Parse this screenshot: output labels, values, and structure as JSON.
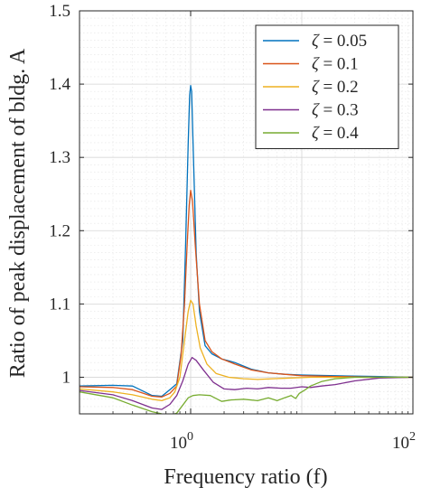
{
  "chart_data": {
    "type": "line",
    "title": "",
    "xlabel": "Frequency ratio (f)",
    "ylabel": "Ratio of peak displacement of bldg. A",
    "xscale": "log",
    "xlim": [
      0.1,
      100
    ],
    "ylim": [
      0.95,
      1.5
    ],
    "xticks": [
      {
        "value": 1,
        "base": "10",
        "exp": "0"
      },
      {
        "value": 100,
        "base": "10",
        "exp": "2"
      }
    ],
    "yticks": [
      {
        "value": 1.0,
        "label": "1"
      },
      {
        "value": 1.1,
        "label": "1.1"
      },
      {
        "value": 1.2,
        "label": "1.2"
      },
      {
        "value": 1.3,
        "label": "1.3"
      },
      {
        "value": 1.4,
        "label": "1.4"
      },
      {
        "value": 1.5,
        "label": "1.5"
      }
    ],
    "grid": true,
    "legend_position": "top-right",
    "series": [
      {
        "name": "ζ = 0.05",
        "symbol": "ζ",
        "label_value": " = 0.05",
        "color": "#0072BD",
        "x": [
          0.1,
          0.2,
          0.3,
          0.45,
          0.55,
          0.65,
          0.75,
          0.85,
          0.9,
          0.95,
          0.98,
          1.0,
          1.02,
          1.06,
          1.12,
          1.2,
          1.35,
          1.55,
          1.9,
          2.5,
          3.5,
          5,
          7,
          10,
          20,
          50,
          100
        ],
        "y": [
          0.988,
          0.989,
          0.988,
          0.975,
          0.974,
          0.983,
          0.991,
          1.05,
          1.18,
          1.32,
          1.385,
          1.398,
          1.39,
          1.3,
          1.17,
          1.09,
          1.043,
          1.032,
          1.025,
          1.02,
          1.011,
          1.006,
          1.004,
          1.003,
          1.002,
          1.001,
          1.0
        ]
      },
      {
        "name": "ζ = 0.1",
        "symbol": "ζ",
        "label_value": " = 0.1",
        "color": "#D95319",
        "x": [
          0.1,
          0.2,
          0.3,
          0.45,
          0.55,
          0.65,
          0.75,
          0.82,
          0.88,
          0.93,
          0.97,
          1.0,
          1.04,
          1.1,
          1.2,
          1.35,
          1.55,
          1.9,
          2.5,
          3.5,
          5,
          7,
          10,
          20,
          50,
          100
        ],
        "y": [
          0.987,
          0.986,
          0.983,
          0.974,
          0.973,
          0.978,
          0.988,
          1.03,
          1.1,
          1.18,
          1.235,
          1.255,
          1.24,
          1.18,
          1.1,
          1.05,
          1.035,
          1.025,
          1.018,
          1.01,
          1.006,
          1.004,
          1.002,
          1.001,
          1.0,
          1.0
        ]
      },
      {
        "name": "ζ = 0.2",
        "symbol": "ζ",
        "label_value": " = 0.2",
        "color": "#EDB120",
        "x": [
          0.1,
          0.2,
          0.3,
          0.45,
          0.55,
          0.65,
          0.72,
          0.8,
          0.88,
          0.95,
          1.0,
          1.05,
          1.12,
          1.22,
          1.4,
          1.7,
          2.2,
          3,
          4,
          5.5,
          8,
          12,
          20,
          50,
          100
        ],
        "y": [
          0.984,
          0.98,
          0.976,
          0.97,
          0.968,
          0.972,
          0.98,
          1.0,
          1.05,
          1.09,
          1.105,
          1.1,
          1.07,
          1.04,
          1.018,
          1.005,
          1.0,
          0.998,
          0.997,
          0.998,
          0.999,
          1.0,
          1.0,
          1.0,
          1.0
        ]
      },
      {
        "name": "ζ = 0.3",
        "symbol": "ζ",
        "label_value": " = 0.3",
        "color": "#7E2F8E",
        "x": [
          0.1,
          0.2,
          0.3,
          0.45,
          0.55,
          0.65,
          0.75,
          0.85,
          0.95,
          1.03,
          1.12,
          1.3,
          1.6,
          2.0,
          2.5,
          3.2,
          4,
          5,
          6.5,
          8,
          10,
          12,
          15,
          20,
          30,
          50,
          100
        ],
        "y": [
          0.982,
          0.976,
          0.968,
          0.958,
          0.956,
          0.963,
          0.975,
          0.995,
          1.018,
          1.027,
          1.023,
          1.01,
          0.993,
          0.984,
          0.983,
          0.985,
          0.984,
          0.986,
          0.985,
          0.985,
          0.987,
          0.986,
          0.988,
          0.99,
          0.995,
          0.999,
          1.0
        ]
      },
      {
        "name": "ζ = 0.4",
        "symbol": "ζ",
        "label_value": " = 0.4",
        "color": "#77AC30",
        "x": [
          0.1,
          0.2,
          0.3,
          0.45,
          0.55,
          0.65,
          0.75,
          0.85,
          0.95,
          1.05,
          1.2,
          1.5,
          1.9,
          2.3,
          3,
          4,
          5,
          6,
          7,
          8,
          8.8,
          9.5,
          10.5,
          12,
          15,
          20,
          30,
          50,
          100
        ],
        "y": [
          0.98,
          0.972,
          0.962,
          0.953,
          0.95,
          0.948,
          0.951,
          0.962,
          0.972,
          0.975,
          0.976,
          0.975,
          0.967,
          0.969,
          0.97,
          0.968,
          0.972,
          0.968,
          0.972,
          0.975,
          0.971,
          0.978,
          0.982,
          0.988,
          0.994,
          0.998,
          1.0,
          1.0,
          1.0
        ]
      }
    ]
  }
}
